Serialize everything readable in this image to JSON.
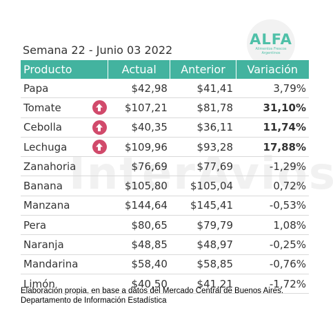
{
  "title": "Semana 22 - Junio 03 2022",
  "logo": {
    "word": "ALFA",
    "tagline": "Alimentos Frescos Argentinos"
  },
  "watermark": "InterAvios",
  "table": {
    "headers": [
      "Producto",
      "Actual",
      "Anterior",
      "Variación"
    ],
    "rows": [
      {
        "producto": "Papa",
        "actual": "$42,98",
        "anterior": "$41,41",
        "variacion": "3,79%",
        "up": false,
        "bold": false
      },
      {
        "producto": "Tomate",
        "actual": "$107,21",
        "anterior": "$81,78",
        "variacion": "31,10%",
        "up": true,
        "bold": true
      },
      {
        "producto": "Cebolla",
        "actual": "$40,35",
        "anterior": "$36,11",
        "variacion": "11,74%",
        "up": true,
        "bold": true
      },
      {
        "producto": "Lechuga",
        "actual": "$109,96",
        "anterior": "$93,28",
        "variacion": "17,88%",
        "up": true,
        "bold": true
      },
      {
        "producto": "Zanahoria",
        "actual": "$76,69",
        "anterior": "$77,69",
        "variacion": "-1,29%",
        "up": false,
        "bold": false
      },
      {
        "producto": "Banana",
        "actual": "$105,80",
        "anterior": "$105,04",
        "variacion": "0,72%",
        "up": false,
        "bold": false
      },
      {
        "producto": "Manzana",
        "actual": "$144,64",
        "anterior": "$145,41",
        "variacion": "-0,53%",
        "up": false,
        "bold": false
      },
      {
        "producto": "Pera",
        "actual": "$80,65",
        "anterior": "$79,79",
        "variacion": "1,08%",
        "up": false,
        "bold": false
      },
      {
        "producto": "Naranja",
        "actual": "$48,85",
        "anterior": "$48,97",
        "variacion": "-0,25%",
        "up": false,
        "bold": false
      },
      {
        "producto": "Mandarina",
        "actual": "$58,40",
        "anterior": "$58,85",
        "variacion": "-0,76%",
        "up": false,
        "bold": false
      },
      {
        "producto": "Limón",
        "actual": "$40,50",
        "anterior": "$41,21",
        "variacion": "-1,72%",
        "up": false,
        "bold": false
      }
    ]
  },
  "footer": {
    "line1": "Elaboración propia, en base a datos del Mercado Central de Buenos Aires.",
    "line2": "Departamento de Información Estadística"
  },
  "colors": {
    "header_bg": "#43b39f",
    "up_icon": "#d14a6b",
    "logo": "#4fc0a8"
  },
  "icons": {
    "up": "arrow-up-circle-icon"
  }
}
